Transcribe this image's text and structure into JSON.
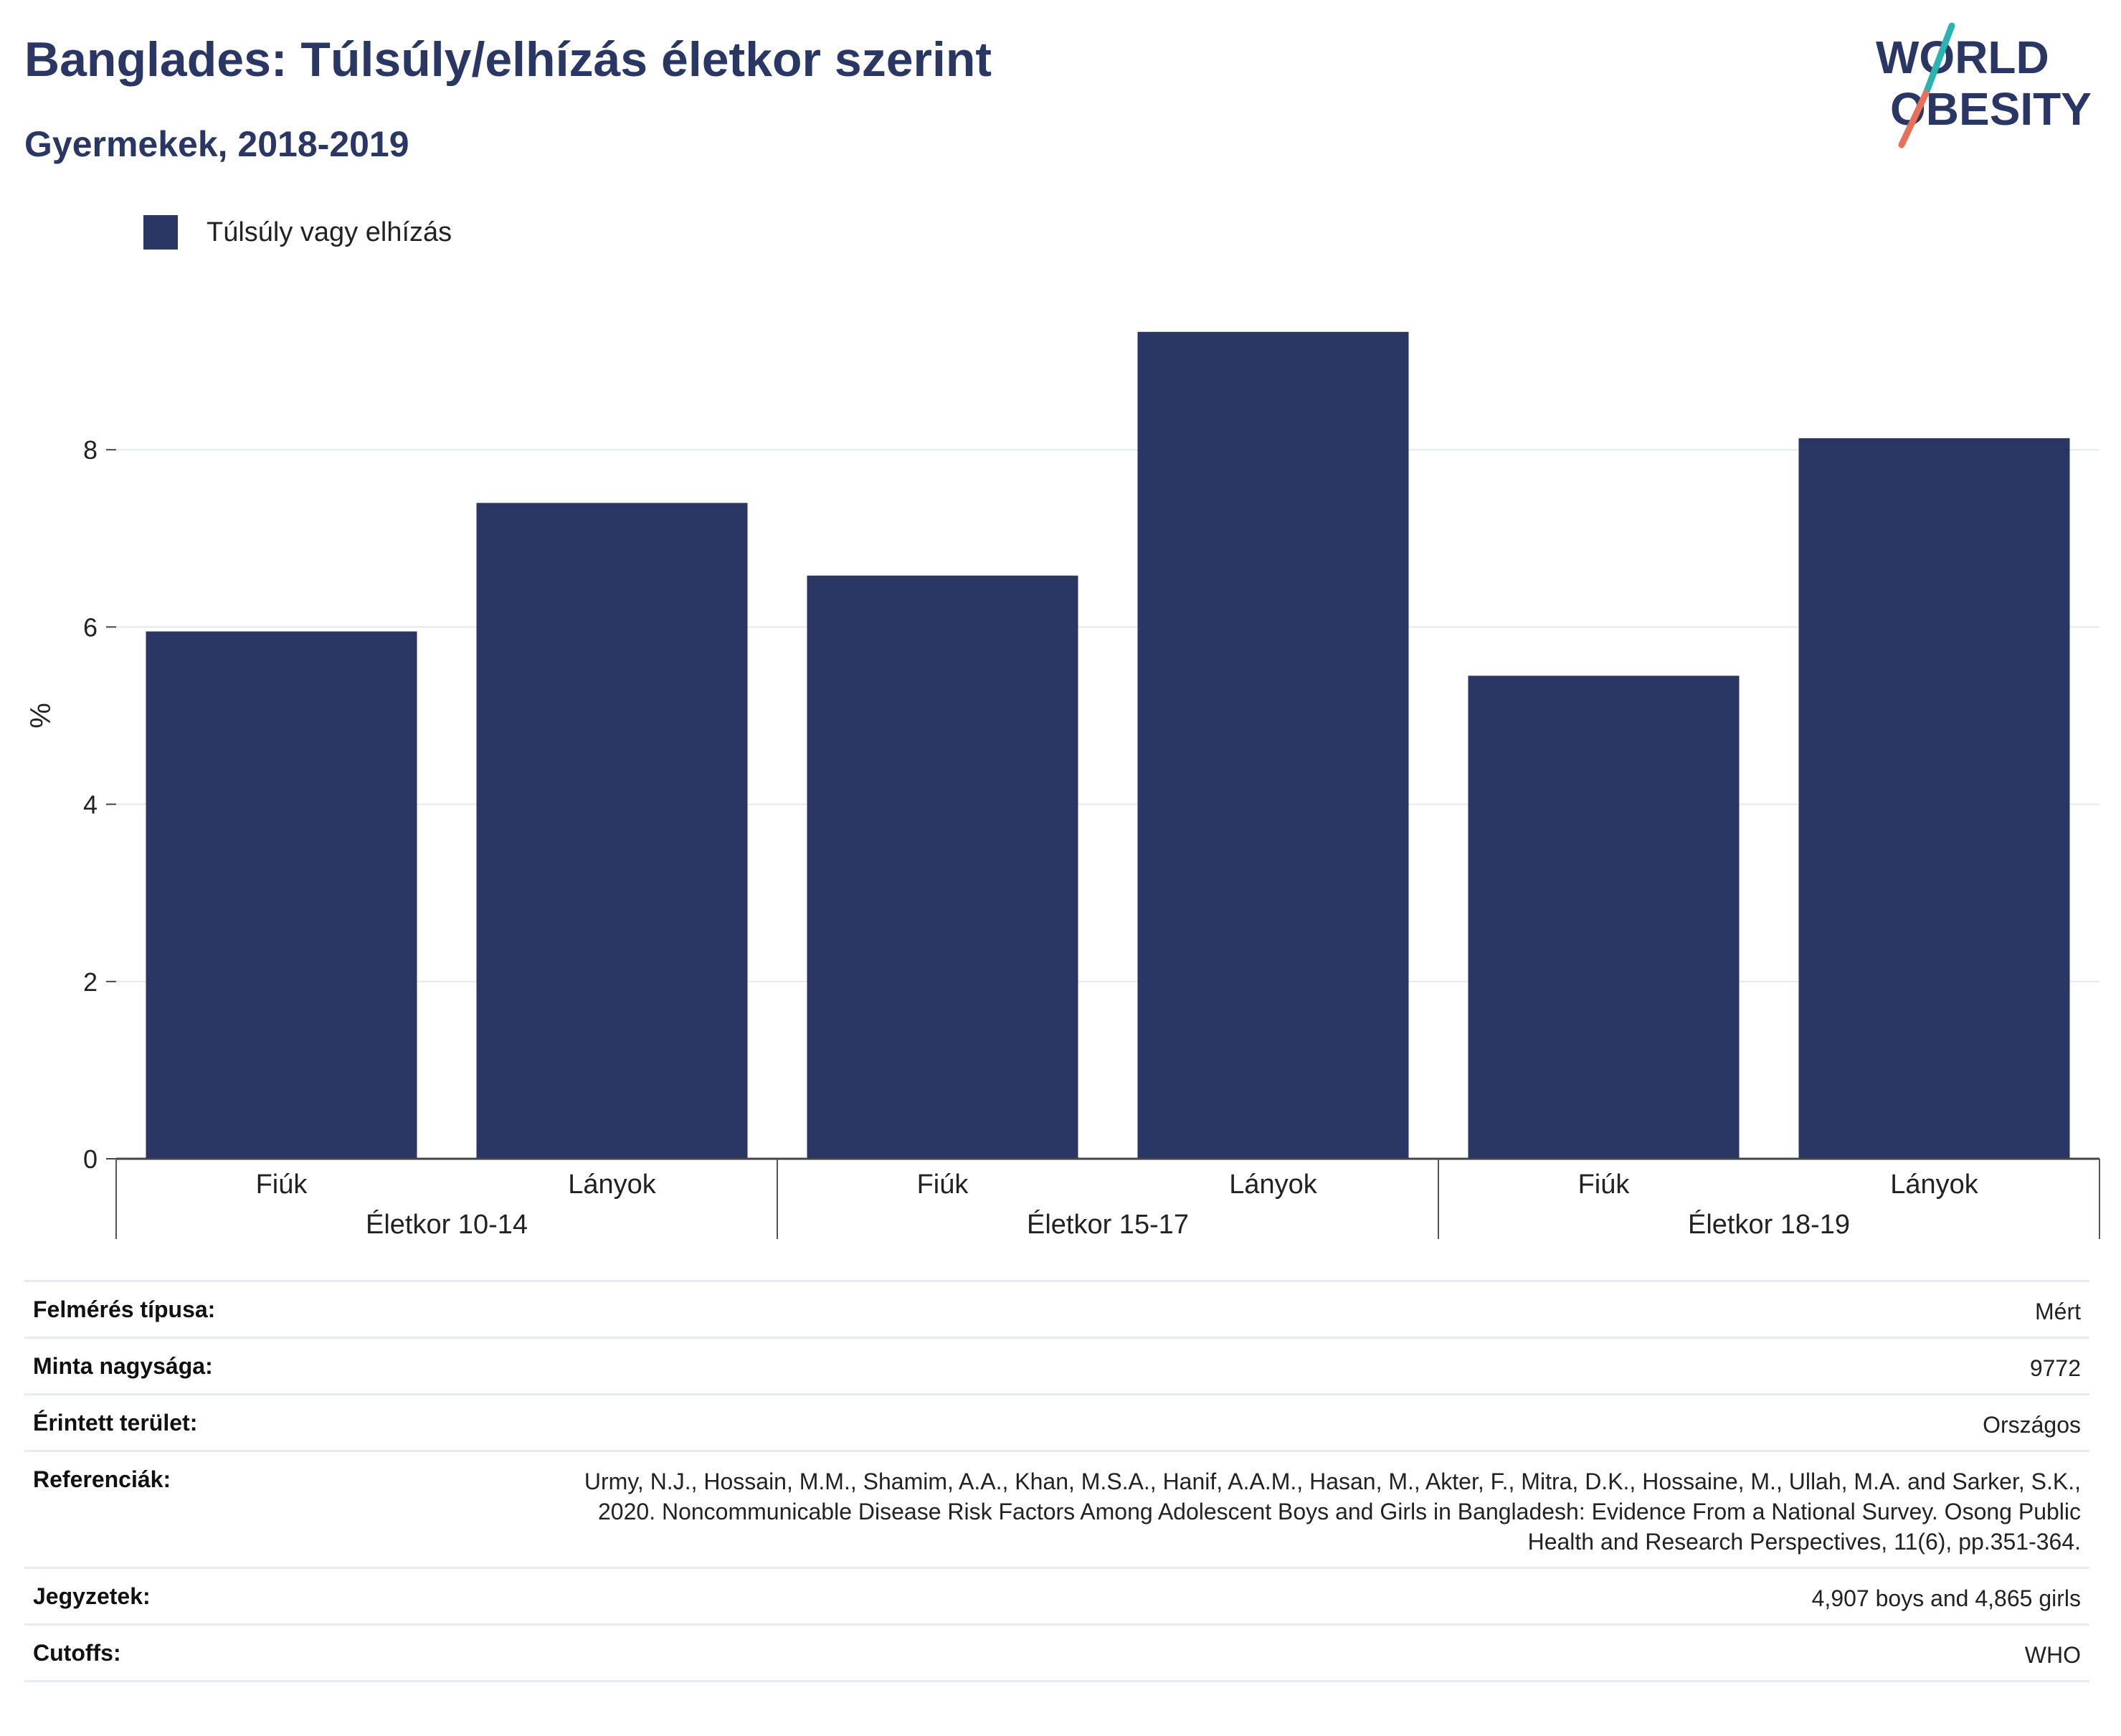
{
  "header": {
    "title": "Banglades: Túlsúly/elhízás életkor szerint",
    "subtitle": "Gyermekek, 2018-2019"
  },
  "logo": {
    "line1": "WORLD",
    "line2": "OBESITY",
    "text_color": "#2a3764",
    "accent_teal": "#2ab3b0",
    "accent_coral": "#e8705a"
  },
  "chart_data": {
    "type": "bar",
    "title": "Banglades: Túlsúly/elhízás életkor szerint",
    "subtitle": "Gyermekek, 2018-2019",
    "xlabel": "",
    "ylabel": "%",
    "ylim": [
      0,
      10
    ],
    "yticks": [
      0,
      2,
      4,
      6,
      8
    ],
    "grid": true,
    "legend_position": "top-left",
    "categories": [
      "Fiúk",
      "Lányok",
      "Fiúk",
      "Lányok",
      "Fiúk",
      "Lányok"
    ],
    "groups": [
      {
        "label": "Életkor 10-14",
        "span": 2
      },
      {
        "label": "Életkor 15-17",
        "span": 2
      },
      {
        "label": "Életkor 18-19",
        "span": 2
      }
    ],
    "series": [
      {
        "name": "Túlsúly vagy elhízás",
        "color": "#2a3764",
        "values": [
          5.95,
          7.4,
          6.58,
          9.33,
          5.45,
          8.13
        ]
      }
    ]
  },
  "meta": [
    {
      "label": "Felmérés típusa:",
      "value": "Mért"
    },
    {
      "label": "Minta nagysága:",
      "value": "9772"
    },
    {
      "label": "Érintett terület:",
      "value": "Országos"
    },
    {
      "label": "Referenciák:",
      "value": "Urmy, N.J., Hossain, M.M., Shamim, A.A., Khan, M.S.A., Hanif, A.A.M., Hasan, M., Akter, F., Mitra, D.K., Hossaine, M., Ullah, M.A. and Sarker, S.K., 2020. Noncommunicable Disease Risk Factors Among Adolescent Boys and Girls in Bangladesh: Evidence From a National Survey. Osong Public Health and Research Perspectives, 11(6), pp.351-364."
    },
    {
      "label": "Jegyzetek:",
      "value": "4,907 boys and 4,865 girls"
    },
    {
      "label": "Cutoffs:",
      "value": "WHO"
    }
  ]
}
